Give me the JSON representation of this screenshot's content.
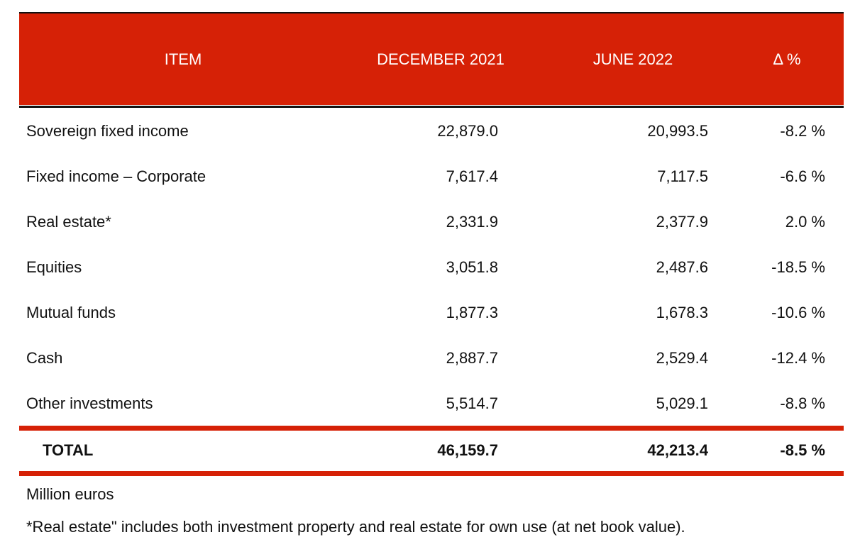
{
  "headers": {
    "item": "ITEM",
    "dec": "DECEMBER 2021",
    "jun": "JUNE 2022",
    "delta": "Δ %"
  },
  "rows": [
    {
      "item": "Sovereign fixed income",
      "dec": "22,879.0",
      "jun": "20,993.5",
      "delta": "-8.2 %"
    },
    {
      "item": "Fixed income – Corporate",
      "dec": "7,617.4",
      "jun": "7,117.5",
      "delta": "-6.6 %"
    },
    {
      "item": "Real estate*",
      "dec": "2,331.9",
      "jun": "2,377.9",
      "delta": "2.0 %"
    },
    {
      "item": "Equities",
      "dec": "3,051.8",
      "jun": "2,487.6",
      "delta": "-18.5 %"
    },
    {
      "item": "Mutual funds",
      "dec": "1,877.3",
      "jun": "1,678.3",
      "delta": "-10.6 %"
    },
    {
      "item": "Cash",
      "dec": "2,887.7",
      "jun": "2,529.4",
      "delta": "-12.4 %"
    },
    {
      "item": "Other investments",
      "dec": "5,514.7",
      "jun": "5,029.1",
      "delta": "-8.8 %"
    }
  ],
  "total": {
    "item": "TOTAL",
    "dec": "46,159.7",
    "jun": "42,213.4",
    "delta": "-8.5 %"
  },
  "notes": {
    "units": "Million euros",
    "footnote": "*Real estate\" includes both investment property and real estate for own use (at net book value)."
  },
  "colors": {
    "accent": "#d62106"
  }
}
